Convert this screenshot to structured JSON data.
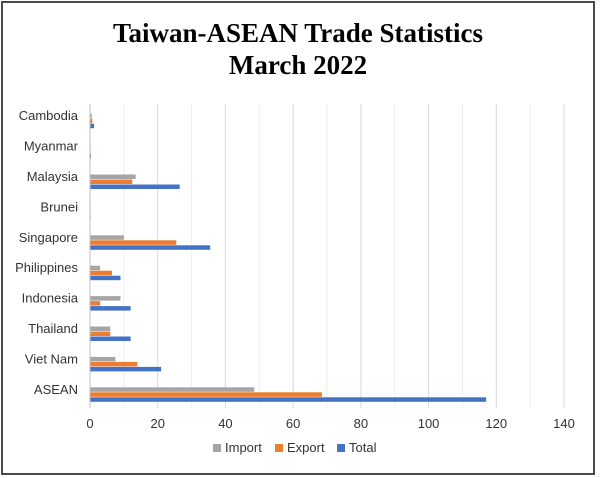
{
  "chart_data": {
    "type": "bar",
    "orientation": "horizontal",
    "title": "Taiwan-ASEAN Trade Statistics",
    "subtitle": "March 2022",
    "categories": [
      "ASEAN",
      "Viet Nam",
      "Thailand",
      "Indonesia",
      "Philippines",
      "Singapore",
      "Brunei",
      "Malaysia",
      "Myanmar",
      "Cambodia"
    ],
    "series": [
      {
        "name": "Import",
        "color": "#a5a5a5",
        "values": [
          48.5,
          7.5,
          6.0,
          9.0,
          3.0,
          10.0,
          0.1,
          13.5,
          0.1,
          0.5
        ]
      },
      {
        "name": "Export",
        "color": "#ed7d31",
        "values": [
          68.5,
          14.0,
          6.0,
          3.0,
          6.5,
          25.5,
          0.1,
          12.5,
          0.2,
          0.7
        ]
      },
      {
        "name": "Total",
        "color": "#4472c4",
        "values": [
          117.0,
          21.0,
          12.0,
          12.0,
          9.0,
          35.5,
          0.2,
          26.5,
          0.3,
          1.2
        ]
      }
    ],
    "xlim": [
      0,
      140
    ],
    "xticks": [
      0,
      20,
      40,
      60,
      80,
      100,
      120,
      140
    ],
    "xticklabels": [
      "0",
      "20",
      "40",
      "60",
      "80",
      "100",
      "120",
      "140"
    ],
    "grid": true,
    "legend_position": "bottom"
  }
}
